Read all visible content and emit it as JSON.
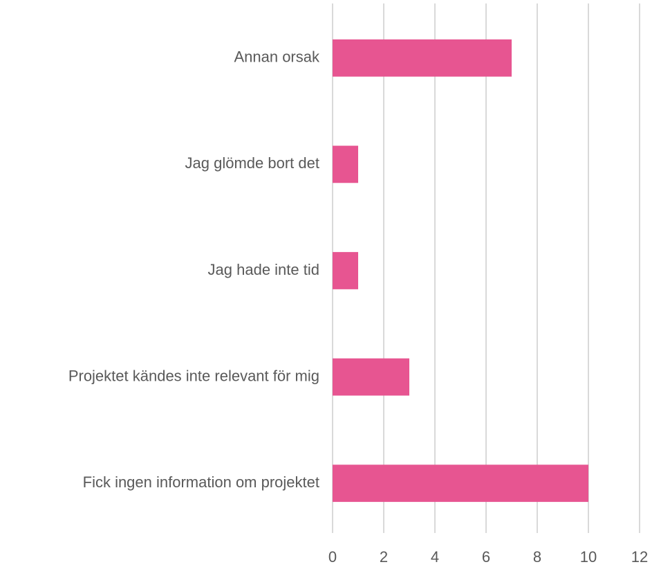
{
  "chart_data": {
    "type": "bar",
    "orientation": "horizontal",
    "categories": [
      "Annan orsak",
      "Jag glömde bort det",
      "Jag hade inte tid",
      "Projektet kändes inte relevant för mig",
      "Fick ingen information om projektet"
    ],
    "values": [
      7,
      1,
      1,
      3,
      10
    ],
    "color": "#e75591",
    "xlim": [
      0,
      12
    ],
    "xticks": [
      0,
      2,
      4,
      6,
      8,
      10,
      12
    ],
    "grid": true
  }
}
